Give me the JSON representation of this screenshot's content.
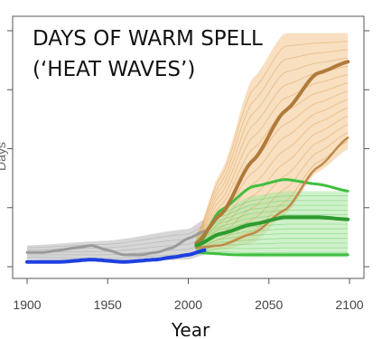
{
  "chart_data": {
    "type": "line",
    "title": "DAYS OF WARM SPELL",
    "subtitle": "(‘HEAT WAVES’)",
    "xlabel": "Year",
    "ylabel": "Days",
    "xlim": [
      1900,
      2100
    ],
    "ylim": [
      0,
      100
    ],
    "xticks": [
      1900,
      1950,
      2000,
      2050,
      2100
    ],
    "grid": false,
    "legend": "none",
    "colors": {
      "historical": "#9a9a9a",
      "historical_band": "#cccccc",
      "observed": "#1f3fe0",
      "high_scenario": "#b07a3a",
      "high_band": "#f0c58c",
      "low_scenario": "#2f9a2f",
      "low_band": "#a8e6a0",
      "low_upper": "#3fbf3f"
    },
    "series": [
      {
        "x": [
          1900,
          1910,
          1920,
          1930,
          1940,
          1950,
          1960,
          1970,
          1980,
          1990,
          2000,
          2010
        ],
        "values": [
          6,
          6,
          7,
          8,
          9,
          7,
          5,
          5,
          6,
          8,
          12,
          15
        ]
      },
      {
        "x": [
          1900,
          1920,
          1940,
          1960,
          1980,
          1990,
          2000,
          2010
        ],
        "values": [
          2,
          2,
          3,
          2,
          3,
          4,
          5,
          7
        ]
      },
      {
        "x": [
          2005,
          2020,
          2040,
          2060,
          2080,
          2100
        ],
        "values": [
          10,
          22,
          45,
          66,
          82,
          87
        ]
      },
      {
        "x": [
          2005,
          2020,
          2040,
          2060,
          2080,
          2100
        ],
        "values": [
          9,
          14,
          18,
          21,
          21,
          20
        ]
      }
    ],
    "bands": [
      {
        "x": [
          1900,
          1950,
          2000,
          2010
        ],
        "low": [
          3,
          2,
          3,
          5
        ],
        "high": [
          9,
          11,
          16,
          20
        ]
      },
      {
        "x": [
          2005,
          2020,
          2040,
          2060,
          2080,
          2100
        ],
        "low": [
          6,
          7,
          10,
          22,
          40,
          50
        ],
        "high": [
          14,
          40,
          80,
          99,
          99,
          99
        ]
      },
      {
        "x": [
          2005,
          2020,
          2040,
          2060,
          2080,
          2100
        ],
        "low": [
          5,
          5,
          4,
          4,
          4,
          4
        ],
        "high": [
          12,
          24,
          30,
          32,
          32,
          32
        ]
      }
    ],
    "extra_lines": [
      {
        "x": [
          2005,
          2020,
          2040,
          2060,
          2080,
          2100
        ],
        "values": [
          8,
          24,
          34,
          37,
          35,
          32
        ]
      },
      {
        "x": [
          2005,
          2020,
          2040,
          2060,
          2080,
          2100
        ],
        "values": [
          8,
          9,
          14,
          24,
          42,
          55
        ]
      },
      {
        "x": [
          2005,
          2030,
          2060,
          2100
        ],
        "values": [
          6,
          5,
          5,
          5
        ]
      }
    ]
  }
}
